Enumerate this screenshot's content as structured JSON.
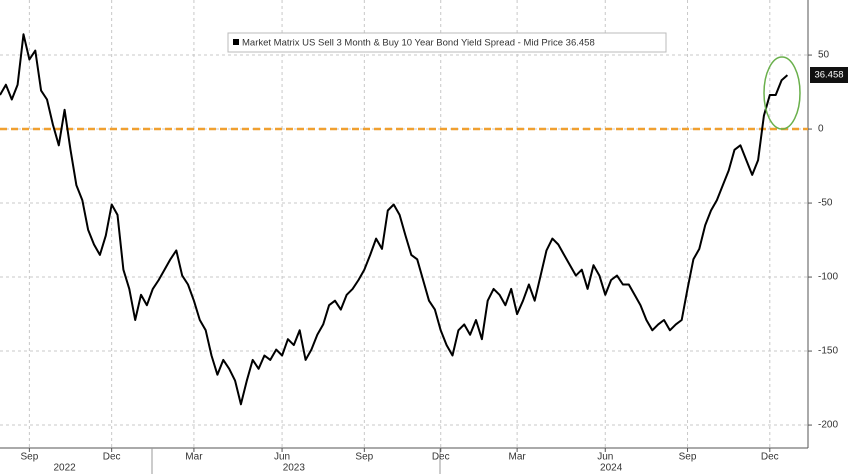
{
  "chart_data": {
    "type": "line",
    "series": [
      {
        "name": "Market Matrix US Sell 3 Month & Buy 10 Year Bond Yield Spread - Mid Price 36.458",
        "color": "#000000",
        "values": [
          23,
          30,
          20,
          30,
          64,
          47,
          53,
          26,
          20,
          3,
          -11,
          13,
          -14,
          -38,
          -48,
          -68,
          -78,
          -85,
          -72,
          -51,
          -58,
          -95,
          -108,
          -129,
          -112,
          -119,
          -108,
          -102,
          -95,
          -88,
          -82,
          -99,
          -105,
          -116,
          -129,
          -136,
          -153,
          -166,
          -156,
          -162,
          -170,
          -186,
          -170,
          -156,
          -162,
          -153,
          -156,
          -149,
          -153,
          -142,
          -146,
          -136,
          -156,
          -149,
          -139,
          -132,
          -119,
          -116,
          -122,
          -112,
          -108,
          -102,
          -95,
          -85,
          -74,
          -81,
          -55,
          -51,
          -58,
          -72,
          -85,
          -88,
          -102,
          -116,
          -122,
          -136,
          -146,
          -153,
          -136,
          -132,
          -139,
          -129,
          -142,
          -116,
          -108,
          -112,
          -119,
          -108,
          -125,
          -116,
          -105,
          -116,
          -99,
          -82,
          -74,
          -78,
          -85,
          -92,
          -99,
          -95,
          -108,
          -92,
          -99,
          -112,
          -102,
          -99,
          -105,
          -105,
          -112,
          -119,
          -129,
          -136,
          -132,
          -129,
          -136,
          -132,
          -129,
          -108,
          -88,
          -81,
          -65,
          -55,
          -48,
          -38,
          -28,
          -14,
          -11,
          -21,
          -31,
          -21,
          9,
          23,
          23,
          33,
          36.458
        ]
      }
    ],
    "xlim": [
      0,
      137.5
    ],
    "xticks": [
      {
        "value": 5,
        "label": "Sep"
      },
      {
        "value": 19,
        "label": "Dec"
      },
      {
        "value": 33,
        "label": "Mar"
      },
      {
        "value": 48,
        "label": "Jun"
      },
      {
        "value": 62,
        "label": "Sep"
      },
      {
        "value": 75,
        "label": "Dec"
      },
      {
        "value": 88,
        "label": "Mar"
      },
      {
        "value": 103,
        "label": "Jun"
      },
      {
        "value": 117,
        "label": "Sep"
      },
      {
        "value": 131,
        "label": "Dec"
      }
    ],
    "xtick_groups": [
      {
        "value": 11,
        "label": "2022"
      },
      {
        "value": 50,
        "label": "2023"
      },
      {
        "value": 104,
        "label": "2024"
      }
    ],
    "ylim": [
      -215.5,
      87.2
    ],
    "yticks": [
      50,
      0,
      -50,
      -100,
      -150,
      -200
    ],
    "reference_line": {
      "value": 0,
      "color": "#f0a030"
    },
    "grid": true
  }
}
